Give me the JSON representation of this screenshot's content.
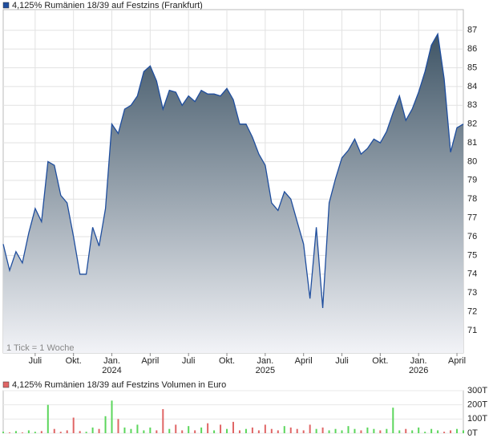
{
  "chart_data": [
    {
      "type": "area",
      "legend": "4,125% Rumänien 18/39 auf Festzins (Frankfurt)",
      "note": "1 Tick = 1 Woche",
      "categories": [
        null,
        null,
        null,
        null,
        null,
        "Juli",
        null,
        null,
        null,
        null,
        null,
        "Okt.",
        null,
        null,
        null,
        null,
        null,
        "Jan.",
        null,
        null,
        null,
        null,
        null,
        "April",
        null,
        null,
        null,
        null,
        null,
        "Juli",
        null,
        null,
        null,
        null,
        null,
        "Okt.",
        null,
        null,
        null,
        null,
        null,
        "Jan.",
        null,
        null,
        null,
        null,
        null,
        "April",
        null,
        null,
        null,
        null,
        null,
        "Juli",
        null,
        null,
        null,
        null,
        null,
        "Okt.",
        null,
        null,
        null,
        null,
        null,
        "Jan.",
        null,
        null,
        null,
        null,
        null,
        "April",
        null
      ],
      "years": [
        null,
        null,
        null,
        null,
        null,
        null,
        null,
        null,
        null,
        null,
        null,
        null,
        null,
        null,
        null,
        null,
        null,
        "2024",
        null,
        null,
        null,
        null,
        null,
        null,
        null,
        null,
        null,
        null,
        null,
        null,
        null,
        null,
        null,
        null,
        null,
        null,
        null,
        null,
        null,
        null,
        null,
        "2025",
        null,
        null,
        null,
        null,
        null,
        null,
        null,
        null,
        null,
        null,
        null,
        null,
        null,
        null,
        null,
        null,
        null,
        null,
        null,
        null,
        null,
        null,
        null,
        "2026",
        null,
        null,
        null,
        null,
        null,
        null,
        null
      ],
      "series": [
        {
          "name": "4,125% Rumänien 18/39 auf Festzins (Frankfurt)",
          "color": "#1f4e9e",
          "values": [
            75.6,
            74.2,
            75.2,
            74.6,
            76.2,
            77.5,
            76.8,
            80.0,
            79.8,
            78.2,
            77.8,
            76.0,
            74.0,
            74.0,
            76.5,
            75.5,
            77.5,
            82.0,
            81.5,
            82.8,
            83.0,
            83.5,
            84.8,
            85.1,
            84.3,
            82.8,
            83.8,
            83.7,
            83.0,
            83.5,
            83.2,
            83.8,
            83.6,
            83.6,
            83.5,
            83.9,
            83.3,
            82.0,
            82.0,
            81.3,
            80.4,
            79.8,
            77.8,
            77.4,
            78.4,
            78.0,
            76.8,
            75.6,
            72.7,
            76.5,
            72.2,
            77.8,
            79.1,
            80.2,
            80.6,
            81.2,
            80.4,
            80.7,
            81.2,
            81.0,
            81.6,
            82.6,
            83.5,
            82.2,
            82.8,
            83.7,
            84.8,
            86.2,
            86.8,
            84.4,
            80.5,
            81.8,
            82.0
          ]
        }
      ],
      "ylim": [
        69.8,
        88.1
      ],
      "yticks": [
        71,
        72,
        73,
        74,
        75,
        76,
        77,
        78,
        79,
        80,
        81,
        82,
        83,
        84,
        85,
        86,
        87
      ],
      "grid": true
    },
    {
      "type": "bar",
      "legend": "4,125% Rumänien 18/39 auf Festzins Volumen in Euro",
      "up_color": "#5cd65c",
      "down_color": "#e06666",
      "values": [
        10,
        5,
        15,
        5,
        20,
        10,
        15,
        200,
        30,
        10,
        20,
        110,
        15,
        10,
        40,
        30,
        120,
        230,
        100,
        40,
        30,
        60,
        20,
        40,
        20,
        170,
        30,
        60,
        20,
        50,
        20,
        40,
        70,
        20,
        60,
        30,
        80,
        20,
        30,
        40,
        20,
        60,
        30,
        20,
        50,
        40,
        30,
        20,
        60,
        30,
        40,
        20,
        30,
        20,
        50,
        30,
        20,
        40,
        30,
        20,
        30,
        180,
        20,
        30,
        20,
        40,
        10,
        30,
        20,
        10,
        20,
        30,
        20
      ],
      "ylim": [
        0,
        300
      ],
      "yticks": [
        {
          "value": 0,
          "label": "0T"
        },
        {
          "value": 100,
          "label": "100T"
        },
        {
          "value": 200,
          "label": "200T"
        },
        {
          "value": 300,
          "label": "300T"
        }
      ],
      "grid": true
    }
  ]
}
